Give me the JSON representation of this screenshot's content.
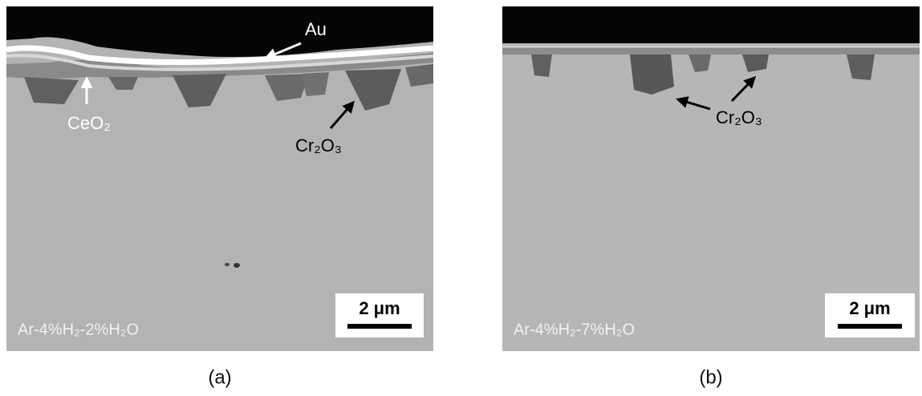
{
  "panels": [
    {
      "caption": "(a)",
      "annotations": [
        "Au",
        "CeO₂",
        "Cr₂O₃"
      ],
      "condition": "Ar-4%H₂-2%H₂O",
      "scale_bar": "2 μm"
    },
    {
      "caption": "(b)",
      "annotations": [
        "Cr₂O₃"
      ],
      "condition": "Ar-4%H₂-7%H₂O",
      "scale_bar": "2 μm"
    }
  ]
}
